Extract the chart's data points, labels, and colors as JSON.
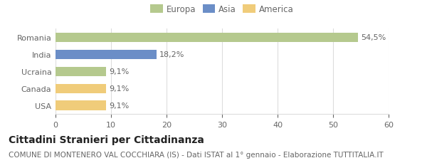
{
  "categories": [
    "Romania",
    "India",
    "Ucraina",
    "Canada",
    "USA"
  ],
  "values": [
    54.5,
    18.2,
    9.1,
    9.1,
    9.1
  ],
  "labels": [
    "54,5%",
    "18,2%",
    "9,1%",
    "9,1%",
    "9,1%"
  ],
  "bar_colors": [
    "#b5c98e",
    "#6b8ec7",
    "#b5c98e",
    "#f0cc7a",
    "#f0cc7a"
  ],
  "legend_items": [
    {
      "label": "Europa",
      "color": "#b5c98e"
    },
    {
      "label": "Asia",
      "color": "#6b8ec7"
    },
    {
      "label": "America",
      "color": "#f0cc7a"
    }
  ],
  "xlim": [
    0,
    60
  ],
  "xticks": [
    0,
    10,
    20,
    30,
    40,
    50,
    60
  ],
  "title": "Cittadini Stranieri per Cittadinanza",
  "subtitle": "COMUNE DI MONTENERO VAL COCCHIARA (IS) - Dati ISTAT al 1° gennaio - Elaborazione TUTTITALIA.IT",
  "title_fontsize": 10,
  "subtitle_fontsize": 7.5,
  "label_fontsize": 8,
  "tick_fontsize": 8,
  "legend_fontsize": 8.5,
  "background_color": "#ffffff",
  "grid_color": "#dddddd",
  "bar_height": 0.55
}
